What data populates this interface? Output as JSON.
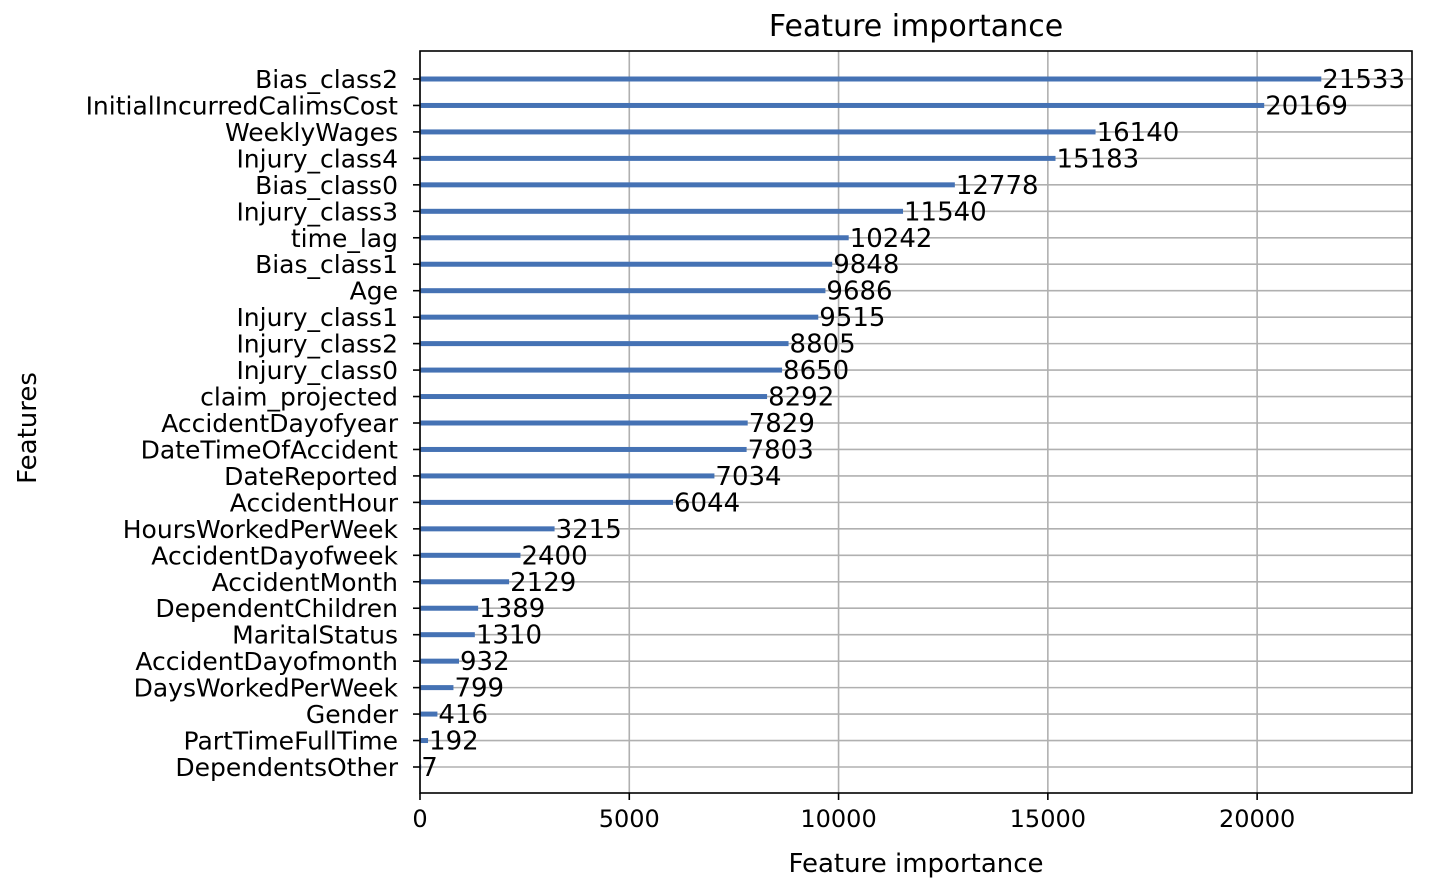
{
  "chart_data": {
    "type": "bar",
    "orientation": "horizontal",
    "title": "Feature importance",
    "xlabel": "Feature importance",
    "ylabel": "Features",
    "xlim": [
      0,
      23700
    ],
    "xticks": [
      0,
      5000,
      10000,
      15000,
      20000
    ],
    "grid": true,
    "bar_color": "#4572b4",
    "categories": [
      "Bias_class2",
      "InitialIncurredCalimsCost",
      "WeeklyWages",
      "Injury_class4",
      "Bias_class0",
      "Injury_class3",
      "time_lag",
      "Bias_class1",
      "Age",
      "Injury_class1",
      "Injury_class2",
      "Injury_class0",
      "claim_projected",
      "AccidentDayofyear",
      "DateTimeOfAccident",
      "DateReported",
      "AccidentHour",
      "HoursWorkedPerWeek",
      "AccidentDayofweek",
      "AccidentMonth",
      "DependentChildren",
      "MaritalStatus",
      "AccidentDayofmonth",
      "DaysWorkedPerWeek",
      "Gender",
      "PartTimeFullTime",
      "DependentsOther"
    ],
    "values": [
      21533,
      20169,
      16140,
      15183,
      12778,
      11540,
      10242,
      9848,
      9686,
      9515,
      8805,
      8650,
      8292,
      7829,
      7803,
      7034,
      6044,
      3215,
      2400,
      2129,
      1389,
      1310,
      932,
      799,
      416,
      192,
      7
    ]
  }
}
